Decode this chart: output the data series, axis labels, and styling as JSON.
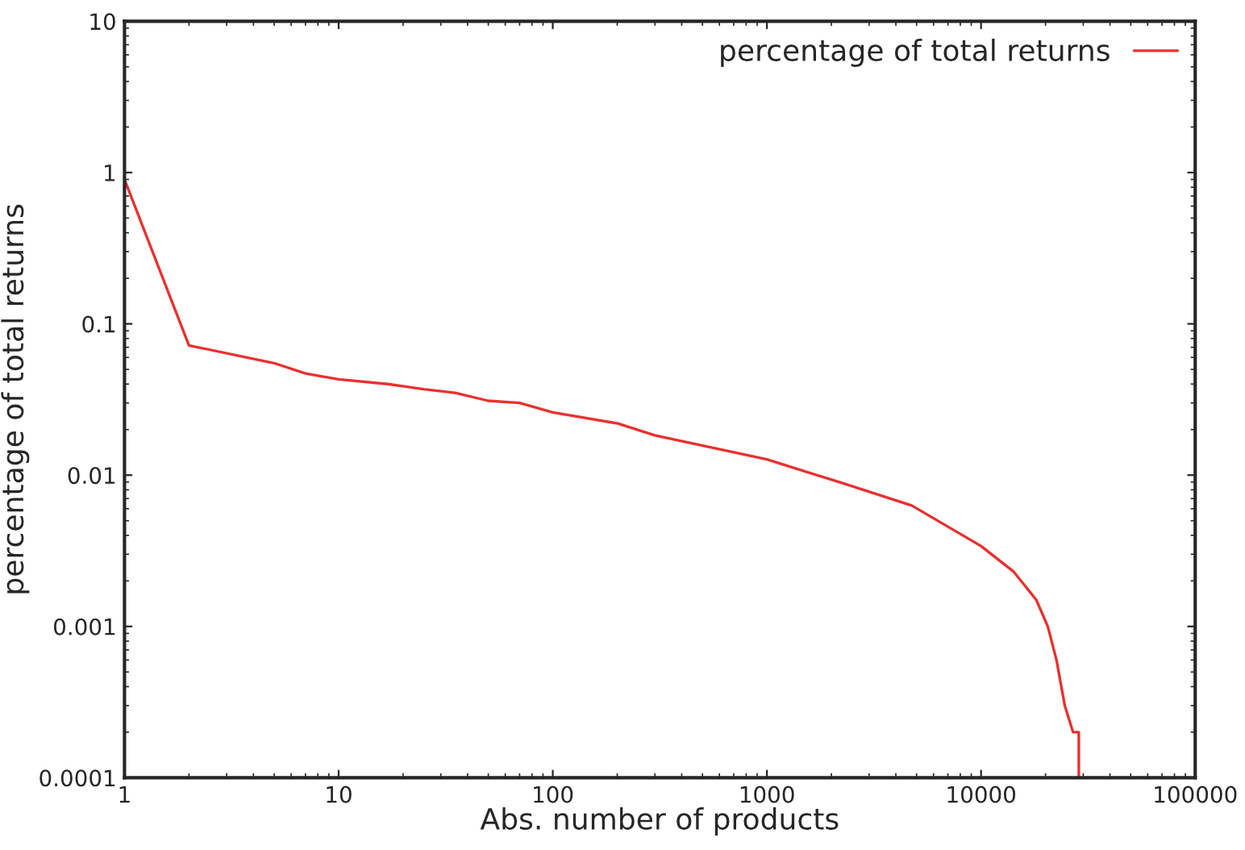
{
  "chart_data": {
    "type": "line",
    "xlabel": "Abs. number of products",
    "ylabel": "percentage of total returns",
    "log": "xy",
    "xlim": [
      1,
      100000
    ],
    "ylim": [
      0.0001,
      10
    ],
    "xticks": [
      1,
      10,
      100,
      1000,
      10000,
      100000
    ],
    "yticks": [
      0.0001,
      0.001,
      0.01,
      0.1,
      1,
      10
    ],
    "grid": false,
    "legend": "top right",
    "marker": "none",
    "line_style": "solid",
    "series": [
      {
        "name": "percentage of total returns",
        "color": "#e8312f",
        "x": [
          1,
          2,
          5,
          7,
          10,
          17,
          25,
          35,
          50,
          70,
          100,
          200,
          300,
          1000,
          2290,
          4750,
          10000,
          14200,
          18100,
          20500,
          22500,
          24600,
          26900,
          28600,
          28600
        ],
        "values": [
          0.9,
          0.072,
          0.055,
          0.047,
          0.043,
          0.04,
          0.037,
          0.035,
          0.031,
          0.03,
          0.026,
          0.022,
          0.0183,
          0.0127,
          0.0088,
          0.0063,
          0.0034,
          0.0023,
          0.0015,
          0.001,
          0.0006,
          0.0003,
          0.0002,
          0.0002,
          0.0001
        ]
      }
    ]
  }
}
